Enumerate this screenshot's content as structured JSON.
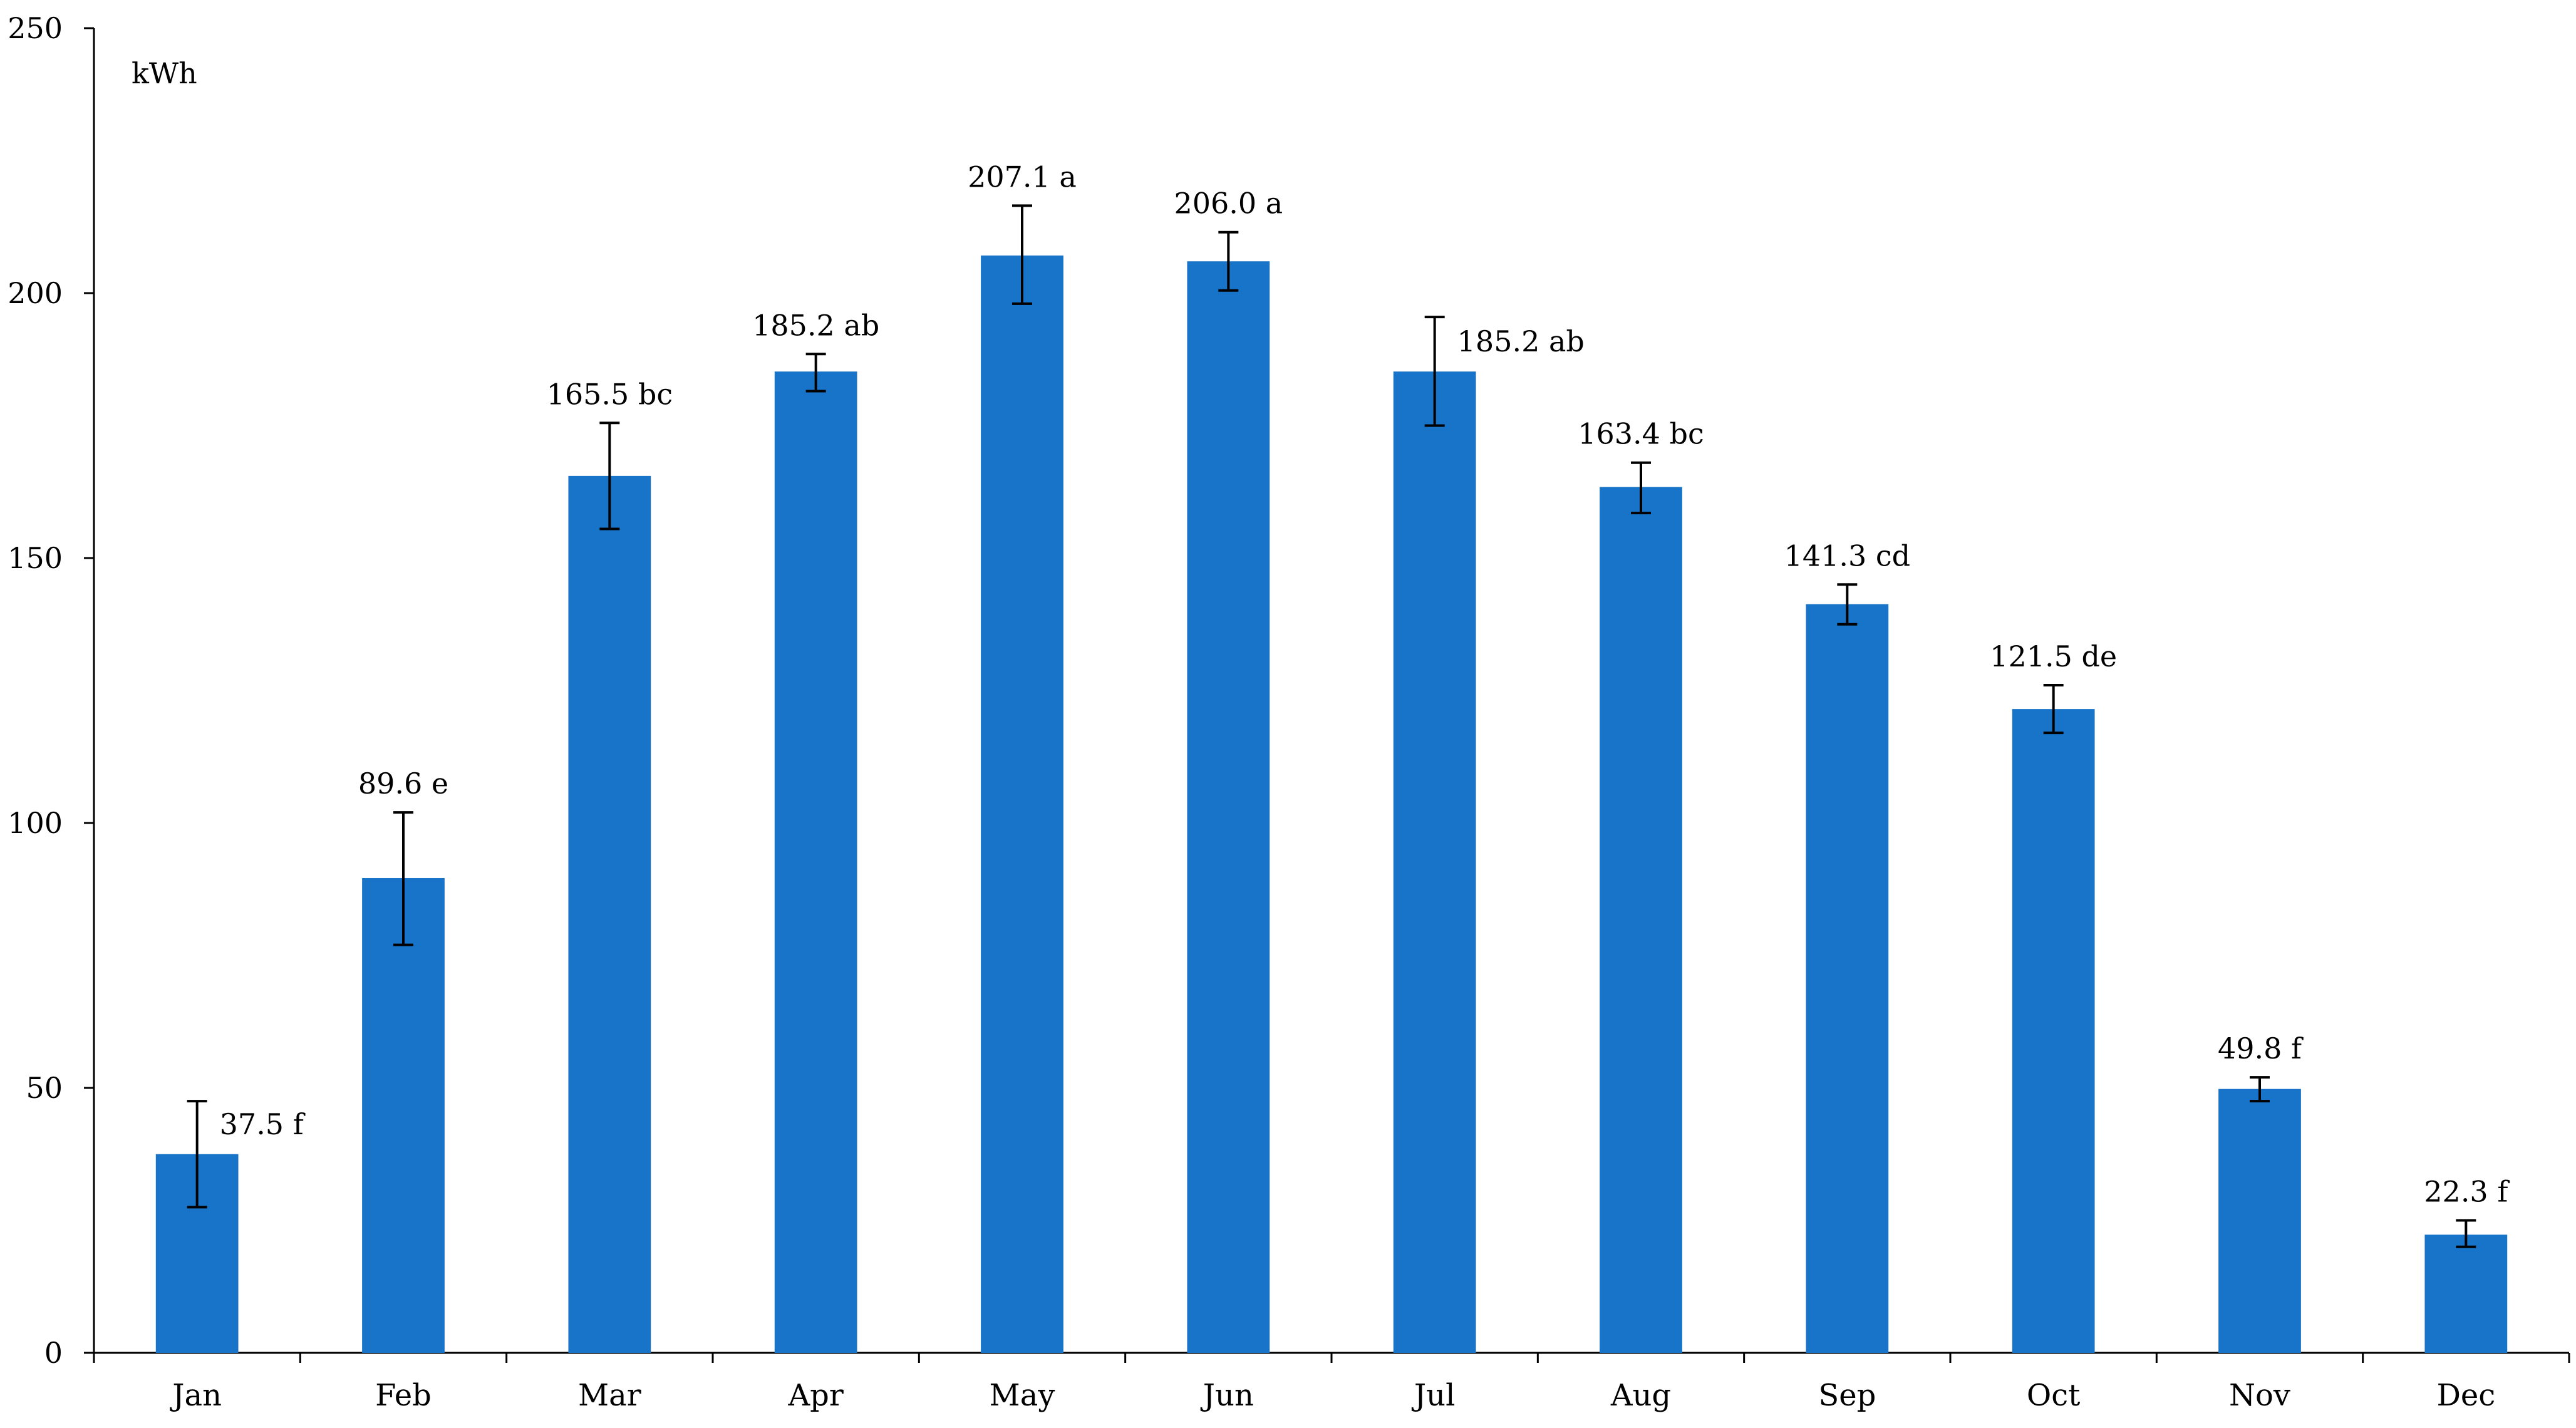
{
  "chart_data": {
    "type": "bar",
    "ylabel": "kWh",
    "ylim": [
      0,
      250
    ],
    "yticks": [
      0,
      50,
      100,
      150,
      200,
      250
    ],
    "grid": false,
    "legend": "none",
    "bar_color": "#1874C8",
    "categories": [
      "Jan",
      "Feb",
      "Mar",
      "Apr",
      "May",
      "Jun",
      "Jul",
      "Aug",
      "Sep",
      "Oct",
      "Nov",
      "Dec"
    ],
    "values": [
      37.5,
      89.6,
      165.5,
      185.2,
      207.1,
      206.0,
      185.2,
      163.4,
      141.3,
      121.5,
      49.8,
      22.3
    ],
    "error_low": [
      27.5,
      77.0,
      155.5,
      181.5,
      198.0,
      200.5,
      175.0,
      158.5,
      137.5,
      117.0,
      47.5,
      20.0
    ],
    "error_high": [
      47.5,
      102.0,
      175.5,
      188.5,
      216.5,
      211.5,
      195.5,
      168.0,
      145.0,
      126.0,
      52.0,
      25.0
    ],
    "data_labels": [
      "37.5 f",
      "89.6 e",
      "165.5 bc",
      "185.2 ab",
      "207.1 a",
      "206.0 a",
      "185.2 ab",
      "163.4 bc",
      "141.3 cd",
      "121.5 de",
      "49.8 f",
      "22.3 f"
    ]
  }
}
